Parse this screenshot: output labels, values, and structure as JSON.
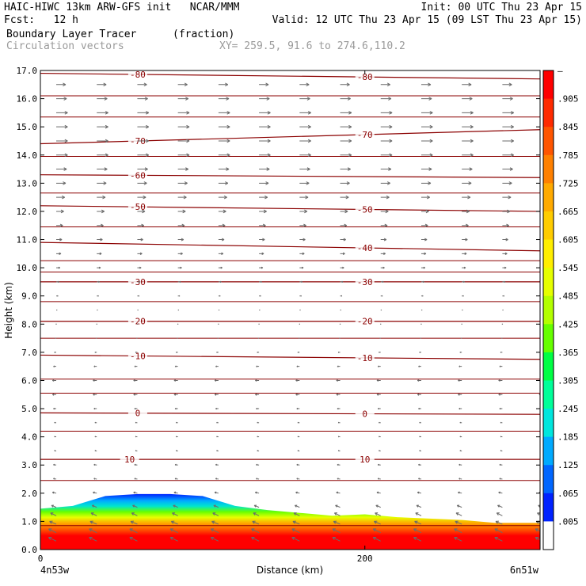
{
  "header": {
    "line1_left": "HAIC-HIWC 13km ARW-GFS init   NCAR/MMM",
    "line1_right": "Init: 00 UTC Thu 23 Apr 15",
    "line2_left": "Fcst:   12 h",
    "line2_right": "Valid: 12 UTC Thu 23 Apr 15 (09 LST Thu 23 Apr 15)",
    "line3_left": "Boundary Layer Tracer",
    "line3_mid": "(fraction)",
    "line4_left": "Circulation vectors",
    "line4_mid": "XY= 259.5, 91.6 to 274.6,110.2"
  },
  "chart_data": {
    "type": "heatmap",
    "title": "Boundary Layer Tracer",
    "units": "(fraction)",
    "overlay": "Circulation vectors",
    "cross_section": "XY= 259.5, 91.6 to 274.6,110.2",
    "xlabel": "Distance (km)",
    "ylabel": "Height (km)",
    "xlim": [
      0,
      308
    ],
    "ylim": [
      0,
      17
    ],
    "x_ticks": [
      0,
      200
    ],
    "x_end_labels": [
      "4n53w",
      "6n51w"
    ],
    "y_ticks": [
      "0.0",
      "1.0",
      "2.0",
      "3.0",
      "4.0",
      "5.0",
      "6.0",
      "7.0",
      "8.0",
      "9.0",
      "10.0",
      "11.0",
      "12.0",
      "13.0",
      "14.0",
      "15.0",
      "16.0",
      "17.0"
    ],
    "colorbar_labels": [
      "–",
      ".905",
      ".845",
      ".785",
      ".725",
      ".665",
      ".605",
      ".545",
      ".485",
      ".425",
      ".365",
      ".305",
      ".245",
      ".185",
      ".125",
      ".065",
      ".005"
    ],
    "colorbar_colors": [
      "#ff0000",
      "#ff2a00",
      "#ff5500",
      "#ff8000",
      "#ffaa00",
      "#ffcc00",
      "#ffee00",
      "#e6ff00",
      "#b3ff00",
      "#66ff00",
      "#00ff44",
      "#00ff99",
      "#00e6dd",
      "#00aaff",
      "#0066ff",
      "#0022ff",
      "#ffffff"
    ],
    "tracer_top": {
      "x": [
        0,
        20,
        40,
        60,
        80,
        100,
        120,
        140,
        160,
        180,
        200,
        220,
        240,
        260,
        280,
        308
      ],
      "y": [
        1.45,
        1.55,
        1.9,
        1.97,
        1.97,
        1.9,
        1.55,
        1.4,
        1.3,
        1.2,
        1.25,
        1.15,
        1.1,
        1.05,
        0.95,
        0.95
      ]
    },
    "temperature_contours": {
      "units": "C",
      "lines": [
        {
          "value": 10,
          "y": [
            3.2,
            3.2
          ],
          "labels_at_x": [
            55,
            200
          ]
        },
        {
          "value": 0,
          "y": [
            4.85,
            4.8
          ],
          "labels_at_x": [
            60,
            200
          ]
        },
        {
          "value": -10,
          "y": [
            6.9,
            6.75
          ],
          "labels_at_x": [
            60,
            200
          ]
        },
        {
          "value": -20,
          "y": [
            8.1,
            8.1
          ],
          "labels_at_x": [
            60,
            200
          ]
        },
        {
          "value": -30,
          "y": [
            9.5,
            9.5
          ],
          "labels_at_x": [
            60,
            200
          ]
        },
        {
          "value": -40,
          "y": [
            10.9,
            10.6
          ],
          "labels_at_x": [
            200
          ]
        },
        {
          "value": -50,
          "y": [
            12.2,
            12.0
          ],
          "labels_at_x": [
            60,
            200
          ]
        },
        {
          "value": -60,
          "y": [
            13.3,
            13.2
          ],
          "labels_at_x": [
            60
          ]
        },
        {
          "value": -70,
          "y": [
            14.4,
            14.9
          ],
          "labels_at_x": [
            60,
            200
          ]
        },
        {
          "value": -80,
          "y": [
            16.9,
            16.7
          ],
          "labels_at_x": [
            60,
            200
          ]
        }
      ],
      "unlabeled_lines_y": [
        0.85,
        2.45,
        4.2,
        5.55,
        6.05,
        7.5,
        8.8,
        9.85,
        10.25,
        11.45,
        12.65,
        13.95,
        15.35,
        16.1
      ]
    },
    "wind_vectors": {
      "x_stations": [
        0,
        25,
        50,
        75,
        100,
        125,
        150,
        175,
        200,
        225,
        250,
        275,
        300
      ],
      "levels_km": [
        0.3,
        0.6,
        0.9,
        1.2,
        1.5,
        2.0,
        2.5,
        3.0,
        3.5,
        4.0,
        4.5,
        5.0,
        5.5,
        6.0,
        6.5,
        7.0,
        7.5,
        8.0,
        8.5,
        9.0,
        9.5,
        10.0,
        10.5,
        11.0,
        11.5,
        12.0,
        12.5,
        13.0,
        13.5,
        14.0,
        14.5,
        15.0,
        15.5,
        16.0,
        16.5
      ],
      "u_by_level": [
        -4,
        -4,
        -3.5,
        -3,
        -2.5,
        -2,
        -1.5,
        -1.5,
        -1,
        -1,
        -1,
        -1.5,
        -2,
        -2,
        -1.5,
        -1,
        -0.5,
        0,
        0.5,
        1,
        1.5,
        2,
        2.5,
        3,
        3.5,
        4,
        4.5,
        5,
        5.5,
        6,
        6,
        6,
        6,
        5.5,
        5
      ],
      "w_by_level": [
        2,
        2,
        1.5,
        1.5,
        1,
        0.5,
        0.3,
        0.2,
        0.2,
        0.1,
        0.1,
        0,
        0,
        0,
        0,
        0,
        0,
        0,
        0,
        0,
        0,
        0,
        0,
        0,
        0,
        0,
        0,
        0,
        0,
        0,
        0,
        0,
        0,
        0,
        0
      ]
    }
  }
}
